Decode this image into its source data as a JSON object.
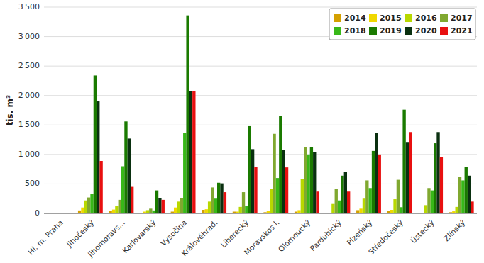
{
  "chart_data": {
    "type": "bar",
    "y_label": "tis. m³",
    "categories": [
      "Hl. m. Praha",
      "Jihočeský",
      "Jihomoravs...",
      "Karlovarský",
      "Vysočina",
      "Královéhrad.",
      "Liberecký",
      "Moravskos l.",
      "Olomoucký",
      "Pardubický",
      "Plzeňský",
      "Středočeský",
      "Ústecký",
      "Zlínský"
    ],
    "series": [
      {
        "name": "2014",
        "color": "#D4A000",
        "values": [
          2,
          50,
          40,
          5,
          30,
          60,
          30,
          20,
          30,
          5,
          55,
          40,
          5,
          20
        ]
      },
      {
        "name": "2015",
        "color": "#F0D800",
        "values": [
          2,
          100,
          65,
          30,
          100,
          70,
          30,
          40,
          55,
          5,
          80,
          60,
          10,
          35
        ]
      },
      {
        "name": "2016",
        "color": "#B8D800",
        "values": [
          2,
          220,
          120,
          55,
          200,
          200,
          110,
          420,
          580,
          160,
          250,
          240,
          140,
          110
        ]
      },
      {
        "name": "2017",
        "color": "#80A830",
        "values": [
          5,
          270,
          230,
          80,
          260,
          440,
          360,
          1350,
          1120,
          420,
          560,
          570,
          430,
          620
        ]
      },
      {
        "name": "2018",
        "color": "#38B818",
        "values": [
          5,
          330,
          800,
          50,
          1360,
          250,
          120,
          600,
          1000,
          220,
          430,
          105,
          390,
          560
        ]
      },
      {
        "name": "2019",
        "color": "#1A7A00",
        "values": [
          10,
          2340,
          1560,
          390,
          3360,
          520,
          1480,
          1650,
          1120,
          640,
          1060,
          1760,
          1190,
          790
        ]
      },
      {
        "name": "2020",
        "color": "#0A3010",
        "values": [
          5,
          1900,
          1270,
          260,
          2080,
          510,
          1090,
          1080,
          1040,
          700,
          1370,
          1200,
          1380,
          640
        ]
      },
      {
        "name": "2021",
        "color": "#E81010",
        "values": [
          5,
          890,
          450,
          230,
          2080,
          360,
          790,
          780,
          370,
          370,
          1000,
          1380,
          960,
          200
        ]
      }
    ],
    "ylim": [
      0,
      3500
    ],
    "yticks": [
      0,
      500,
      {
        "value": 1000,
        "label": "1 000"
      },
      {
        "value": 1500,
        "label": "1 500"
      },
      {
        "value": 2000,
        "label": "2 000"
      },
      {
        "value": 2500,
        "label": "2 500"
      },
      {
        "value": 3000,
        "label": "3 000"
      },
      {
        "value": 3500,
        "label": "3 500"
      }
    ],
    "grid": true,
    "legend": "upper right"
  }
}
